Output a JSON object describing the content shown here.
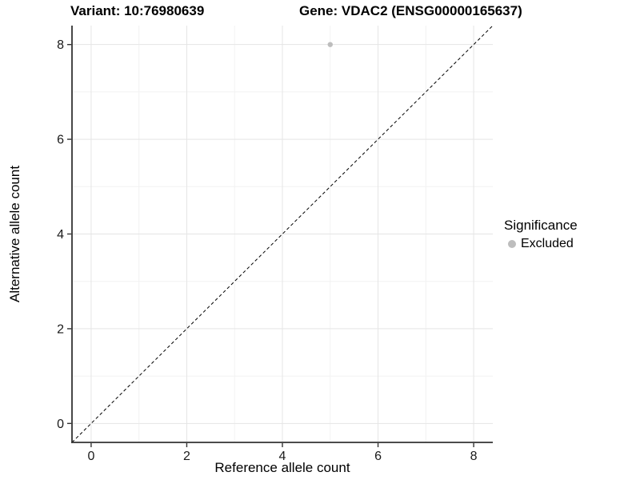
{
  "titles": {
    "variant": "Variant: 10:76980639",
    "gene": "Gene: VDAC2 (ENSG00000165637)"
  },
  "legend": {
    "title": "Significance",
    "items": [
      {
        "label": "Excluded",
        "color": "#bdbdbd"
      }
    ]
  },
  "chart_data": {
    "type": "scatter",
    "title": "Variant: 10:76980639 — Gene: VDAC2 (ENSG00000165637)",
    "xlabel": "Reference allele count",
    "ylabel": "Alternative allele count",
    "xlim": [
      -0.4,
      8.4
    ],
    "ylim": [
      -0.4,
      8.4
    ],
    "x_ticks": [
      0,
      2,
      4,
      6,
      8
    ],
    "y_ticks": [
      0,
      2,
      4,
      6,
      8
    ],
    "x_minor_ticks": [
      1,
      3,
      5,
      7
    ],
    "y_minor_ticks": [
      1,
      3,
      5,
      7
    ],
    "grid": true,
    "legend_position": "right",
    "series": [
      {
        "name": "Excluded",
        "color": "#bdbdbd",
        "points": [
          [
            5,
            8
          ]
        ]
      }
    ],
    "identity_line": {
      "style": "dashed",
      "color": "#000000",
      "from": [
        -0.4,
        -0.4
      ],
      "to": [
        8.4,
        8.4
      ]
    }
  },
  "colors": {
    "grid_major": "#e5e5e5",
    "grid_minor": "#f2f2f2",
    "axis_line": "#333333",
    "tick_text": "#1a1a1a",
    "excluded": "#bdbdbd"
  }
}
